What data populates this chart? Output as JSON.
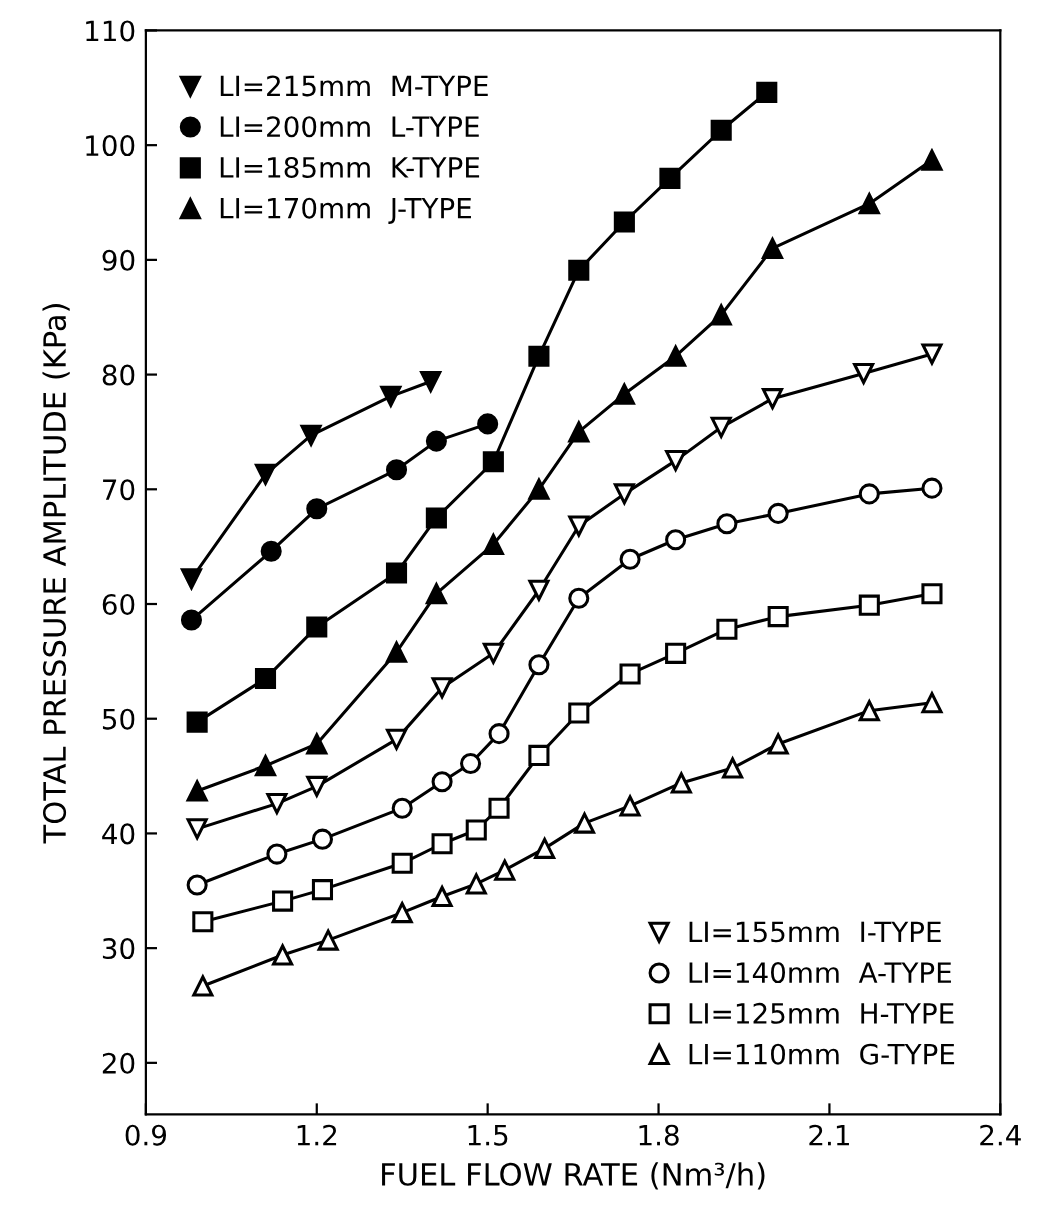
{
  "chart_data": {
    "type": "line",
    "xlabel": "FUEL FLOW RATE (Nm³/h)",
    "ylabel": "TOTAL PRESSURE AMPLITUDE (KPa)",
    "xlim": [
      0.9,
      2.4
    ],
    "xticks": [
      0.9,
      1.2,
      1.5,
      1.8,
      2.1,
      2.4
    ],
    "ylim": [
      15.5,
      110
    ],
    "yticks": [
      20,
      30,
      40,
      50,
      60,
      70,
      80,
      90,
      100,
      110
    ],
    "grid": false,
    "legend": [
      "top left",
      "bottom right"
    ],
    "line_style": "solid",
    "series": [
      {
        "name": "LI=215mm  M-TYPE",
        "color": "#000000",
        "marker": "triangle-down",
        "x": [
          0.98,
          1.11,
          1.19,
          1.33,
          1.4
        ],
        "values": [
          62.2,
          71.3,
          74.7,
          78.1,
          79.4
        ]
      },
      {
        "name": "LI=200mm  L-TYPE",
        "color": "#000000",
        "marker": "circle",
        "x": [
          0.98,
          1.12,
          1.2,
          1.34,
          1.41,
          1.5
        ],
        "values": [
          58.6,
          64.6,
          68.3,
          71.7,
          74.2,
          75.7
        ]
      },
      {
        "name": "LI=185mm  K-TYPE",
        "color": "#000000",
        "marker": "square",
        "x": [
          0.99,
          1.11,
          1.2,
          1.34,
          1.41,
          1.51,
          1.59,
          1.66,
          1.74,
          1.82,
          1.91,
          1.99
        ],
        "values": [
          49.7,
          53.5,
          58.0,
          62.7,
          67.5,
          72.4,
          81.6,
          89.1,
          93.3,
          97.1,
          101.3,
          104.6
        ]
      },
      {
        "name": "LI=170mm  J-TYPE",
        "color": "#000000",
        "marker": "triangle",
        "x": [
          0.99,
          1.11,
          1.2,
          1.34,
          1.41,
          1.51,
          1.59,
          1.66,
          1.74,
          1.83,
          1.91,
          2.0,
          2.17,
          2.28
        ],
        "values": [
          43.7,
          45.9,
          47.8,
          55.8,
          60.9,
          65.2,
          70.0,
          75.0,
          78.3,
          81.6,
          85.2,
          91.0,
          94.9,
          98.7
        ]
      },
      {
        "name": "LI=155mm  I-TYPE",
        "color": "#000000",
        "marker": "triangle-down-open",
        "x": [
          0.99,
          1.13,
          1.2,
          1.34,
          1.42,
          1.51,
          1.59,
          1.66,
          1.74,
          1.83,
          1.91,
          2.0,
          2.16,
          2.28
        ],
        "values": [
          40.4,
          42.6,
          44.1,
          48.2,
          52.7,
          55.7,
          61.2,
          66.8,
          69.6,
          72.5,
          75.4,
          77.9,
          80.1,
          81.8
        ]
      },
      {
        "name": "LI=140mm  A-TYPE",
        "color": "#000000",
        "marker": "circle-open",
        "x": [
          0.99,
          1.13,
          1.21,
          1.35,
          1.42,
          1.47,
          1.52,
          1.59,
          1.66,
          1.75,
          1.83,
          1.92,
          2.01,
          2.17,
          2.28
        ],
        "values": [
          35.5,
          38.2,
          39.5,
          42.2,
          44.5,
          46.1,
          48.7,
          54.7,
          60.5,
          63.9,
          65.6,
          67.0,
          67.9,
          69.6,
          70.1
        ]
      },
      {
        "name": "LI=125mm  H-TYPE",
        "color": "#000000",
        "marker": "square-open",
        "x": [
          1.0,
          1.14,
          1.21,
          1.35,
          1.42,
          1.48,
          1.52,
          1.59,
          1.66,
          1.75,
          1.83,
          1.92,
          2.01,
          2.17,
          2.28
        ],
        "values": [
          32.3,
          34.1,
          35.1,
          37.4,
          39.1,
          40.3,
          42.2,
          46.8,
          50.5,
          53.9,
          55.7,
          57.8,
          58.9,
          59.9,
          60.9
        ]
      },
      {
        "name": "LI=110mm  G-TYPE",
        "color": "#000000",
        "marker": "triangle-open",
        "x": [
          1.0,
          1.14,
          1.22,
          1.35,
          1.42,
          1.48,
          1.53,
          1.6,
          1.67,
          1.75,
          1.84,
          1.93,
          2.01,
          2.17,
          2.28
        ],
        "values": [
          26.7,
          29.4,
          30.7,
          33.1,
          34.5,
          35.6,
          36.8,
          38.7,
          40.9,
          42.4,
          44.4,
          45.7,
          47.8,
          50.7,
          51.4
        ]
      }
    ]
  }
}
